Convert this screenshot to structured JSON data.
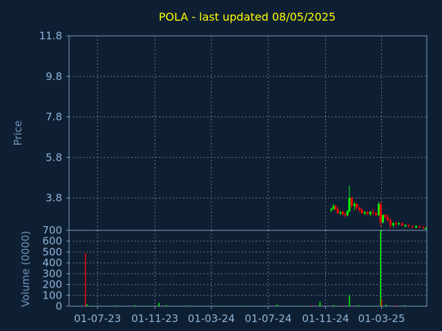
{
  "colors": {
    "background": "#0f1f33",
    "title": "#ffff00",
    "axis_text": "#8fb4d9",
    "axis_title": "#6f93b8",
    "frame": "#7f9fc0",
    "grid": "#b8c8d8",
    "up": "#00ff00",
    "down": "#ff0000"
  },
  "chart_data": [
    {
      "type": "candlestick",
      "title": "POLA - last updated 08/05/2025",
      "ylabel": "Price",
      "ylim": [
        2.2,
        11.8
      ],
      "yticks": [
        "11.8",
        "9.8",
        "7.8",
        "5.8",
        "3.8"
      ],
      "grid": true,
      "x_range": [
        "2023-05-01",
        "2025-06-06"
      ],
      "ohlc": [
        [
          "2024-11-13",
          3.2,
          3.3,
          3.1,
          3.25
        ],
        [
          "2024-11-18",
          3.25,
          3.5,
          3.2,
          3.4
        ],
        [
          "2024-11-22",
          3.4,
          3.45,
          3.2,
          3.25
        ],
        [
          "2024-11-27",
          3.25,
          3.35,
          3.0,
          3.05
        ],
        [
          "2024-12-03",
          3.05,
          3.15,
          2.95,
          3.1
        ],
        [
          "2024-12-08",
          3.1,
          3.2,
          2.95,
          3.0
        ],
        [
          "2024-12-13",
          3.0,
          3.1,
          2.85,
          2.95
        ],
        [
          "2024-12-18",
          2.95,
          3.2,
          2.9,
          3.15
        ],
        [
          "2024-12-22",
          3.15,
          4.4,
          3.1,
          3.8
        ],
        [
          "2024-12-27",
          3.8,
          3.85,
          3.3,
          3.4
        ],
        [
          "2025-01-02",
          3.4,
          3.6,
          3.2,
          3.5
        ],
        [
          "2025-01-07",
          3.5,
          3.55,
          3.2,
          3.3
        ],
        [
          "2025-01-13",
          3.3,
          3.4,
          3.1,
          3.2
        ],
        [
          "2025-01-18",
          3.2,
          3.3,
          3.0,
          3.05
        ],
        [
          "2025-01-24",
          3.05,
          3.15,
          2.95,
          3.1
        ],
        [
          "2025-01-30",
          3.1,
          3.15,
          2.95,
          3.0
        ],
        [
          "2025-02-05",
          3.0,
          3.15,
          2.9,
          3.1
        ],
        [
          "2025-02-11",
          3.1,
          3.25,
          2.95,
          3.05
        ],
        [
          "2025-02-17",
          3.05,
          3.1,
          2.9,
          2.95
        ],
        [
          "2025-02-23",
          2.95,
          3.6,
          2.9,
          3.5
        ],
        [
          "2025-02-27",
          3.5,
          3.6,
          2.4,
          2.6
        ],
        [
          "2025-03-04",
          2.6,
          3.0,
          2.55,
          2.95
        ],
        [
          "2025-03-09",
          2.95,
          3.0,
          2.8,
          2.85
        ],
        [
          "2025-03-14",
          2.85,
          3.0,
          2.6,
          2.7
        ],
        [
          "2025-03-20",
          2.7,
          2.8,
          2.3,
          2.45
        ],
        [
          "2025-03-26",
          2.45,
          2.6,
          2.35,
          2.55
        ],
        [
          "2025-04-01",
          2.55,
          2.65,
          2.4,
          2.5
        ],
        [
          "2025-04-07",
          2.5,
          2.6,
          2.45,
          2.55
        ],
        [
          "2025-04-14",
          2.55,
          2.6,
          2.4,
          2.45
        ],
        [
          "2025-04-21",
          2.45,
          2.5,
          2.35,
          2.45
        ],
        [
          "2025-04-28",
          2.45,
          2.5,
          2.35,
          2.4
        ],
        [
          "2025-05-06",
          2.4,
          2.45,
          2.3,
          2.38
        ],
        [
          "2025-05-14",
          2.38,
          2.45,
          2.3,
          2.4
        ],
        [
          "2025-05-22",
          2.4,
          2.45,
          2.3,
          2.35
        ],
        [
          "2025-05-30",
          2.35,
          2.4,
          2.28,
          2.3
        ],
        [
          "2025-06-04",
          2.3,
          2.35,
          2.25,
          2.3
        ]
      ]
    },
    {
      "type": "bar",
      "ylabel": "Volume (0000)",
      "ylim": [
        0,
        700
      ],
      "yticks": [
        "700",
        "600",
        "500",
        "400",
        "300",
        "200",
        "100",
        "0"
      ],
      "xticks": [
        "01-07-23",
        "01-11-23",
        "01-03-24",
        "01-07-24",
        "01-11-24",
        "01-03-25"
      ],
      "grid": true,
      "volume": [
        [
          "2023-06-05",
          490,
          "down"
        ],
        [
          "2023-06-08",
          20,
          "up"
        ],
        [
          "2023-06-20",
          5,
          "up"
        ],
        [
          "2023-08-10",
          6,
          "up"
        ],
        [
          "2023-09-20",
          8,
          "up"
        ],
        [
          "2023-10-20",
          5,
          "up"
        ],
        [
          "2023-11-10",
          30,
          "up"
        ],
        [
          "2023-11-25",
          10,
          "up"
        ],
        [
          "2024-01-15",
          6,
          "up"
        ],
        [
          "2024-03-20",
          5,
          "up"
        ],
        [
          "2024-05-10",
          5,
          "up"
        ],
        [
          "2024-07-20",
          15,
          "up"
        ],
        [
          "2024-09-15",
          5,
          "up"
        ],
        [
          "2024-10-01",
          8,
          "down"
        ],
        [
          "2024-10-20",
          40,
          "up"
        ],
        [
          "2024-11-18",
          10,
          "up"
        ],
        [
          "2024-12-05",
          8,
          "down"
        ],
        [
          "2024-12-22",
          100,
          "up"
        ],
        [
          "2025-01-10",
          10,
          "up"
        ],
        [
          "2025-02-15",
          5,
          "up"
        ],
        [
          "2025-02-27",
          700,
          "up"
        ],
        [
          "2025-03-01",
          60,
          "down"
        ],
        [
          "2025-03-10",
          15,
          "up"
        ],
        [
          "2025-04-01",
          10,
          "down"
        ],
        [
          "2025-04-20",
          8,
          "up"
        ],
        [
          "2025-05-15",
          5,
          "up"
        ]
      ]
    }
  ]
}
